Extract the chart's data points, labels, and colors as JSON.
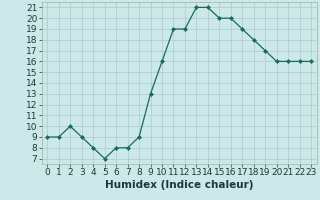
{
  "x": [
    0,
    1,
    2,
    3,
    4,
    5,
    6,
    7,
    8,
    9,
    10,
    11,
    12,
    13,
    14,
    15,
    16,
    17,
    18,
    19,
    20,
    21,
    22,
    23
  ],
  "y": [
    9,
    9,
    10,
    9,
    8,
    7,
    8,
    8,
    9,
    13,
    16,
    19,
    19,
    21,
    21,
    20,
    20,
    19,
    18,
    17,
    16,
    16,
    16,
    16
  ],
  "line_color": "#1a6b5a",
  "marker": "D",
  "marker_size": 2.0,
  "bg_color": "#cce8e8",
  "grid_color": "#aacccc",
  "xlabel": "Humidex (Indice chaleur)",
  "xlim": [
    -0.5,
    23.5
  ],
  "ylim": [
    6.5,
    21.5
  ],
  "yticks": [
    7,
    8,
    9,
    10,
    11,
    12,
    13,
    14,
    15,
    16,
    17,
    18,
    19,
    20,
    21
  ],
  "xticks": [
    0,
    1,
    2,
    3,
    4,
    5,
    6,
    7,
    8,
    9,
    10,
    11,
    12,
    13,
    14,
    15,
    16,
    17,
    18,
    19,
    20,
    21,
    22,
    23
  ],
  "tick_fontsize": 6.5,
  "xlabel_fontsize": 7.5
}
